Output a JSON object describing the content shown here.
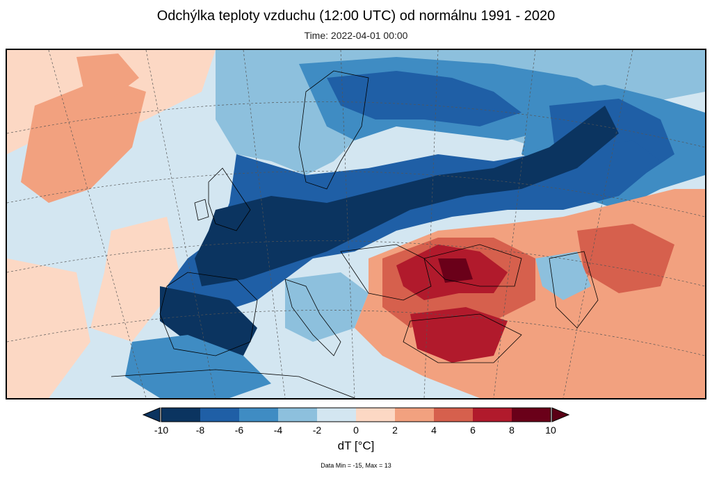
{
  "header": {
    "title": "Odchýlka teploty vzduchu (12:00 UTC) od normálnu 1991 - 2020",
    "subtitle": "Time: 2022-04-01 00:00"
  },
  "map": {
    "region": "Europe",
    "variable": "air temperature anomaly"
  },
  "legend": {
    "label": "dT [°C]",
    "ticks": [
      "-10",
      "-8",
      "-6",
      "-4",
      "-2",
      "0",
      "2",
      "4",
      "6",
      "8",
      "10"
    ],
    "under_color": "#0b3460",
    "over_color": "#5a0016",
    "bins": [
      {
        "from": -10,
        "to": -8,
        "color": "#0b3460"
      },
      {
        "from": -8,
        "to": -6,
        "color": "#1f5fa6"
      },
      {
        "from": -6,
        "to": -4,
        "color": "#3f8cc3"
      },
      {
        "from": -4,
        "to": -2,
        "color": "#8dc0dd"
      },
      {
        "from": -2,
        "to": 0,
        "color": "#d3e6f1"
      },
      {
        "from": 0,
        "to": 2,
        "color": "#fcd8c4"
      },
      {
        "from": 2,
        "to": 4,
        "color": "#f2a17f"
      },
      {
        "from": 4,
        "to": 6,
        "color": "#d6604d"
      },
      {
        "from": 6,
        "to": 8,
        "color": "#b11a2c"
      },
      {
        "from": 8,
        "to": 10,
        "color": "#6a0019"
      }
    ]
  },
  "footnote": "Data Min = -15, Max = 13"
}
